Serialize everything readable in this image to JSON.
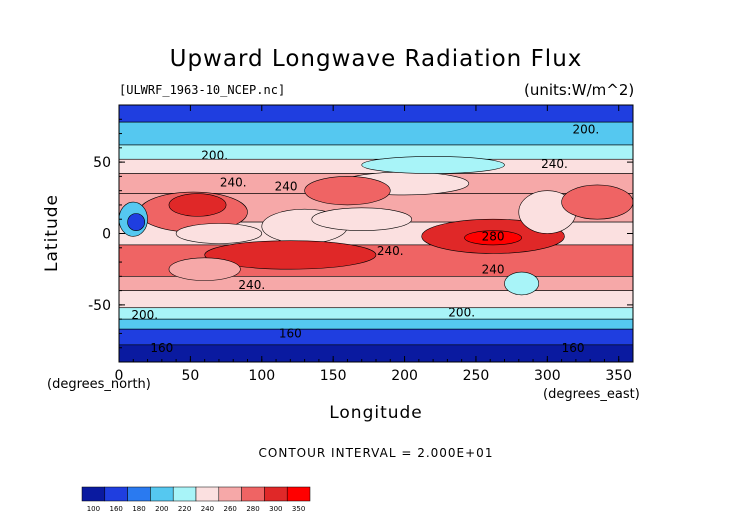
{
  "chart_data": {
    "type": "heatmap",
    "title": "Upward Longwave Radiation Flux",
    "subtitle_left": "[ULWRF_1963-10_NCEP.nc]",
    "subtitle_right": "(units:W/m^2)",
    "xlabel": "Longitude",
    "ylabel": "Latitude",
    "x_unit_label": "(degrees_east)",
    "y_unit_label": "(degrees_north)",
    "xlim": [
      0,
      360
    ],
    "ylim": [
      -90,
      90
    ],
    "x_ticks": [
      0,
      50,
      100,
      150,
      200,
      250,
      300,
      350
    ],
    "y_ticks": [
      -50,
      0,
      50
    ],
    "contour_interval_text": "CONTOUR INTERVAL = 2.000E+01",
    "contour_labels": [
      {
        "text": "200.",
        "lon": 327,
        "lat": 70
      },
      {
        "text": "200.",
        "lon": 67,
        "lat": 52
      },
      {
        "text": "240.",
        "lon": 305,
        "lat": 46
      },
      {
        "text": "240.",
        "lon": 80,
        "lat": 33
      },
      {
        "text": "240",
        "lon": 117,
        "lat": 30
      },
      {
        "text": "240.",
        "lon": 190,
        "lat": -15
      },
      {
        "text": "280",
        "lon": 262,
        "lat": -5
      },
      {
        "text": "240",
        "lon": 262,
        "lat": -28
      },
      {
        "text": "240.",
        "lon": 93,
        "lat": -39
      },
      {
        "text": "200.",
        "lon": 18,
        "lat": -60
      },
      {
        "text": "200.",
        "lon": 240,
        "lat": -58
      },
      {
        "text": "160",
        "lon": 120,
        "lat": -73
      },
      {
        "text": "160",
        "lon": 30,
        "lat": -83
      },
      {
        "text": "160",
        "lon": 318,
        "lat": -83
      }
    ],
    "colorbar": {
      "levels": [
        "100",
        "160",
        "180",
        "200",
        "220",
        "240",
        "260",
        "280",
        "300",
        "350"
      ],
      "colors": [
        "#0a1aa0",
        "#1f3ee0",
        "#2a7af0",
        "#55c8f0",
        "#a8f4f8",
        "#fbe0e0",
        "#f6a8a8",
        "#ef6464",
        "#e02828",
        "#ff0000"
      ]
    },
    "lat_bands": [
      {
        "lat_min": 78,
        "lat_max": 90,
        "class": 1
      },
      {
        "lat_min": 62,
        "lat_max": 78,
        "class": 3
      },
      {
        "lat_min": 52,
        "lat_max": 62,
        "class": 4
      },
      {
        "lat_min": 42,
        "lat_max": 52,
        "class": 5
      },
      {
        "lat_min": 28,
        "lat_max": 42,
        "class": 6
      },
      {
        "lat_min": 8,
        "lat_max": 28,
        "class": 6
      },
      {
        "lat_min": -8,
        "lat_max": 8,
        "class": 5
      },
      {
        "lat_min": -30,
        "lat_max": -8,
        "class": 7
      },
      {
        "lat_min": -40,
        "lat_max": -30,
        "class": 6
      },
      {
        "lat_min": -52,
        "lat_max": -40,
        "class": 5
      },
      {
        "lat_min": -60,
        "lat_max": -52,
        "class": 4
      },
      {
        "lat_min": -67,
        "lat_max": -60,
        "class": 3
      },
      {
        "lat_min": -78,
        "lat_max": -67,
        "class": 1
      },
      {
        "lat_min": -90,
        "lat_max": -78,
        "class": 0
      }
    ],
    "regions": [
      {
        "lon": 52,
        "lat": 15,
        "rx": 38,
        "ry": 14,
        "class": 7
      },
      {
        "lon": 55,
        "lat": 20,
        "rx": 20,
        "ry": 8,
        "class": 8
      },
      {
        "lon": 10,
        "lat": 10,
        "rx": 10,
        "ry": 12,
        "class": 3
      },
      {
        "lon": 12,
        "lat": 8,
        "rx": 6,
        "ry": 6,
        "class": 1
      },
      {
        "lon": 70,
        "lat": 0,
        "rx": 30,
        "ry": 7,
        "class": 5
      },
      {
        "lon": 130,
        "lat": 5,
        "rx": 30,
        "ry": 12,
        "class": 5
      },
      {
        "lon": 120,
        "lat": -15,
        "rx": 60,
        "ry": 10,
        "class": 8
      },
      {
        "lon": 170,
        "lat": 10,
        "rx": 35,
        "ry": 8,
        "class": 5
      },
      {
        "lon": 200,
        "lat": 35,
        "rx": 45,
        "ry": 8,
        "class": 5
      },
      {
        "lon": 220,
        "lat": 48,
        "rx": 50,
        "ry": 6,
        "class": 4
      },
      {
        "lon": 262,
        "lat": -2,
        "rx": 50,
        "ry": 12,
        "class": 8
      },
      {
        "lon": 262,
        "lat": -3,
        "rx": 20,
        "ry": 5,
        "class": 9
      },
      {
        "lon": 300,
        "lat": 15,
        "rx": 20,
        "ry": 15,
        "class": 5
      },
      {
        "lon": 282,
        "lat": -35,
        "rx": 12,
        "ry": 8,
        "class": 4
      },
      {
        "lon": 335,
        "lat": 22,
        "rx": 25,
        "ry": 12,
        "class": 7
      },
      {
        "lon": 160,
        "lat": 30,
        "rx": 30,
        "ry": 10,
        "class": 7
      },
      {
        "lon": 60,
        "lat": -25,
        "rx": 25,
        "ry": 8,
        "class": 6
      }
    ]
  }
}
